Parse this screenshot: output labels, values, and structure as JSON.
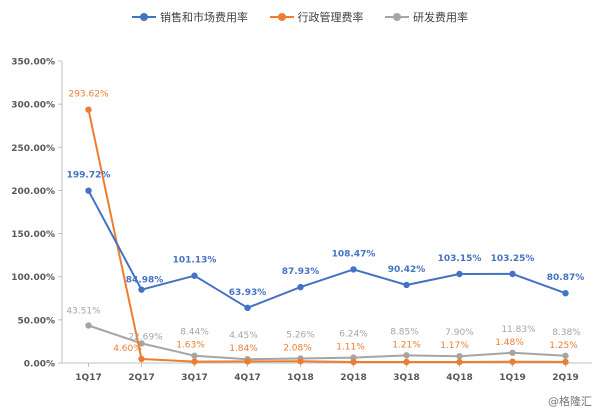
{
  "chart_data": {
    "type": "line",
    "categories": [
      "1Q17",
      "2Q17",
      "3Q17",
      "4Q17",
      "1Q18",
      "2Q18",
      "3Q18",
      "4Q18",
      "1Q19",
      "2Q19"
    ],
    "ylim": [
      0,
      350
    ],
    "yticks": [
      "0.00%",
      "50.00%",
      "100.00%",
      "150.00%",
      "200.00%",
      "250.00%",
      "300.00%",
      "350.00%"
    ],
    "yticks_values": [
      0,
      50,
      100,
      150,
      200,
      250,
      300,
      350
    ],
    "legend_position": "top",
    "grid": false,
    "series": [
      {
        "name": "销售和市场费用率",
        "color": "#4472C4",
        "values": [
          199.72,
          84.98,
          101.13,
          63.93,
          87.93,
          108.47,
          90.42,
          103.15,
          103.25,
          80.87
        ],
        "labels": [
          "199.72%",
          "84.98%",
          "101.13%",
          "63.93%",
          "87.93%",
          "108.47%",
          "90.42%",
          "103.15%",
          "103.25%",
          "80.87%"
        ]
      },
      {
        "name": "行政管理费率",
        "color": "#ED7D31",
        "values": [
          293.62,
          4.6,
          1.63,
          1.84,
          2.08,
          1.11,
          1.21,
          1.17,
          1.48,
          1.25
        ],
        "labels": [
          "293.62%",
          "4.60%",
          "1.63%",
          "1.84%",
          "2.08%",
          "1.11%",
          "1.21%",
          "1.17%",
          "1.48%",
          "1.25%"
        ]
      },
      {
        "name": "研发费用率",
        "color": "#A5A5A5",
        "values": [
          43.51,
          22.69,
          8.44,
          4.45,
          5.26,
          6.24,
          8.85,
          7.9,
          11.83,
          8.38
        ],
        "labels": [
          "43.51%",
          "22.69%",
          "8.44%",
          "4.45%",
          "5.26%",
          "6.24%",
          "8.85%",
          "7.90%",
          "11.83%",
          "8.38%"
        ]
      }
    ]
  },
  "watermark": "@格隆汇"
}
